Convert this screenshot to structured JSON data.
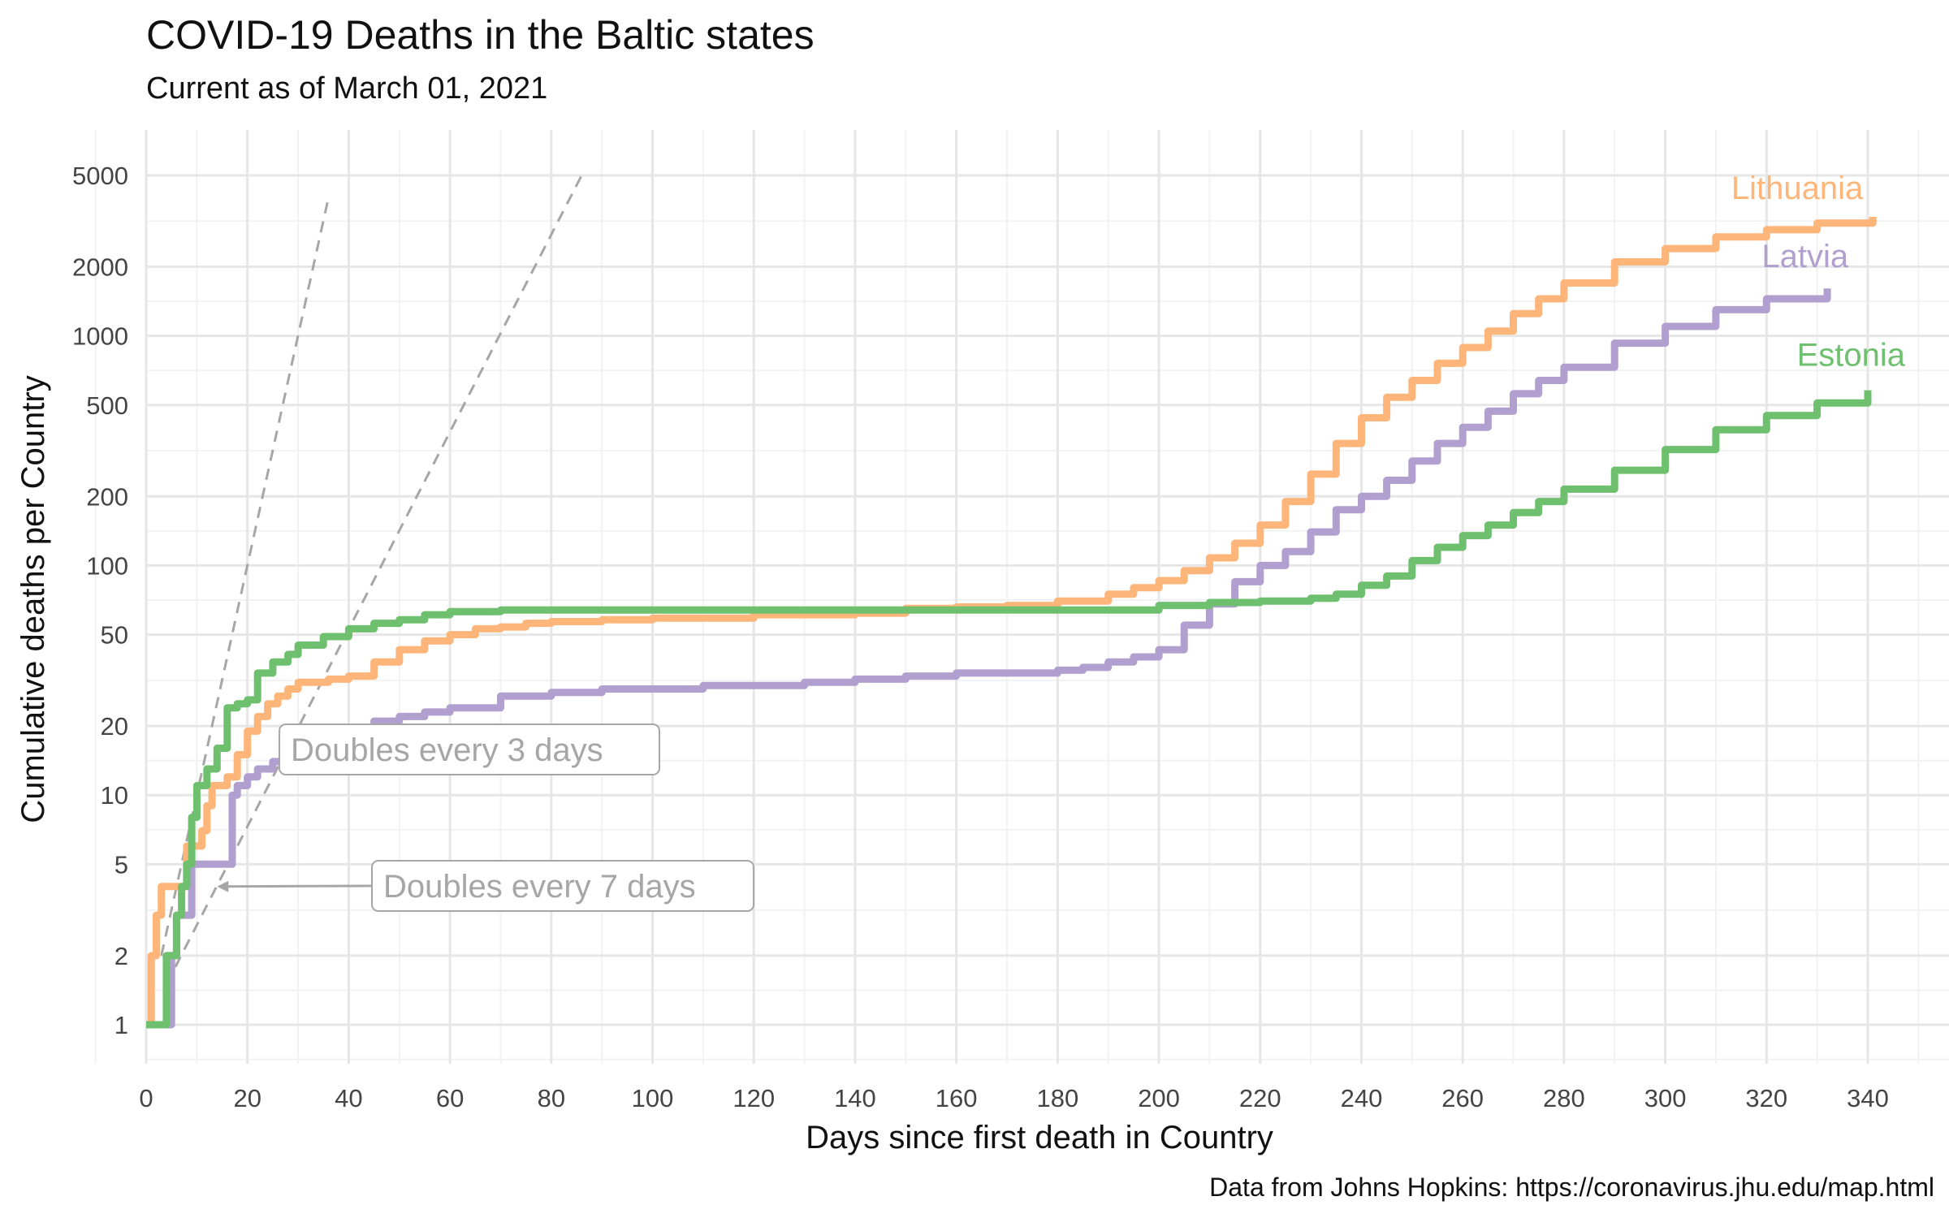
{
  "chart_data": {
    "type": "line",
    "title": "COVID-19 Deaths in the Baltic states",
    "subtitle": "Current as of March 01, 2021",
    "caption": "Data from Johns Hopkins: https://coronavirus.jhu.edu/map.html",
    "xlabel": "Days since first death in Country",
    "ylabel": "Cumulative deaths per Country",
    "xlim": [
      -10,
      350
    ],
    "ylim": [
      0.7,
      6000
    ],
    "yscale": "log",
    "x_ticks": [
      0,
      20,
      40,
      60,
      80,
      100,
      120,
      140,
      160,
      180,
      200,
      220,
      240,
      260,
      280,
      300,
      320,
      340
    ],
    "y_ticks": [
      1,
      2,
      5,
      10,
      20,
      50,
      100,
      200,
      500,
      1000,
      2000,
      5000
    ],
    "grid": true,
    "legend": "direct labels at line ends",
    "series": [
      {
        "name": "Lithuania",
        "color": "#FDB57A",
        "x": [
          0,
          1,
          2,
          3,
          4,
          5,
          6,
          7,
          8,
          9,
          10,
          11,
          12,
          13,
          14,
          16,
          18,
          20,
          22,
          24,
          26,
          28,
          30,
          33,
          36,
          40,
          45,
          50,
          55,
          60,
          65,
          70,
          75,
          80,
          90,
          100,
          110,
          120,
          130,
          140,
          150,
          160,
          170,
          180,
          190,
          195,
          200,
          205,
          210,
          215,
          220,
          225,
          230,
          235,
          240,
          245,
          250,
          255,
          260,
          265,
          270,
          275,
          280,
          290,
          300,
          310,
          320,
          330,
          341
        ],
        "y": [
          1,
          2,
          3,
          4,
          4,
          4,
          4,
          4,
          6,
          6,
          6,
          7,
          9,
          11,
          11,
          12,
          15,
          19,
          22,
          25,
          27,
          29,
          31,
          31,
          32,
          33,
          38,
          43,
          47,
          50,
          53,
          54,
          56,
          57,
          58,
          59,
          59,
          61,
          61,
          62,
          65,
          66,
          67,
          70,
          75,
          80,
          86,
          95,
          108,
          125,
          150,
          190,
          250,
          340,
          440,
          540,
          640,
          760,
          890,
          1050,
          1250,
          1450,
          1700,
          2100,
          2400,
          2700,
          2900,
          3100,
          3300
        ]
      },
      {
        "name": "Latvia",
        "color": "#B1A0CF",
        "x": [
          3,
          4,
          5,
          6,
          7,
          8,
          9,
          10,
          12,
          14,
          16,
          17,
          18,
          20,
          22,
          25,
          30,
          35,
          40,
          45,
          50,
          55,
          60,
          70,
          80,
          90,
          100,
          110,
          120,
          130,
          140,
          150,
          160,
          170,
          180,
          185,
          190,
          195,
          200,
          205,
          210,
          215,
          220,
          225,
          230,
          235,
          240,
          245,
          250,
          255,
          260,
          265,
          270,
          275,
          280,
          290,
          300,
          310,
          320,
          332
        ],
        "y": [
          1,
          1,
          2,
          3,
          3,
          3,
          5,
          5,
          5,
          5,
          5,
          10,
          11,
          12,
          13,
          14,
          15,
          17,
          19,
          21,
          22,
          23,
          24,
          27,
          28,
          29,
          29,
          30,
          30,
          31,
          32,
          33,
          34,
          34,
          35,
          36,
          38,
          40,
          43,
          55,
          68,
          85,
          100,
          115,
          140,
          175,
          200,
          235,
          285,
          340,
          400,
          470,
          560,
          640,
          730,
          930,
          1100,
          1300,
          1450,
          1610
        ]
      },
      {
        "name": "Estonia",
        "color": "#6EC06E",
        "x": [
          0,
          2,
          4,
          6,
          7,
          8,
          9,
          10,
          12,
          14,
          16,
          18,
          20,
          22,
          25,
          28,
          30,
          35,
          40,
          45,
          50,
          55,
          60,
          70,
          80,
          90,
          100,
          110,
          120,
          130,
          140,
          150,
          160,
          170,
          180,
          190,
          200,
          210,
          220,
          230,
          235,
          240,
          245,
          250,
          255,
          260,
          265,
          270,
          275,
          280,
          290,
          300,
          310,
          320,
          330,
          340
        ],
        "y": [
          1,
          1,
          2,
          3,
          4,
          5,
          8,
          11,
          13,
          16,
          24,
          25,
          26,
          34,
          38,
          41,
          45,
          49,
          53,
          56,
          58,
          61,
          63,
          64,
          64,
          64,
          64,
          64,
          64,
          64,
          64,
          64,
          64,
          64,
          64,
          64,
          67,
          69,
          70,
          72,
          75,
          82,
          90,
          105,
          120,
          135,
          150,
          170,
          190,
          215,
          260,
          320,
          390,
          450,
          510,
          580
        ]
      }
    ],
    "reference_lines": [
      {
        "label": "Doubles every 3 days",
        "x": [
          3,
          36
        ],
        "y": [
          2,
          4000
        ]
      },
      {
        "label": "Doubles every 7 days",
        "x": [
          4,
          86
        ],
        "y": [
          1.5,
          5000
        ]
      }
    ]
  }
}
